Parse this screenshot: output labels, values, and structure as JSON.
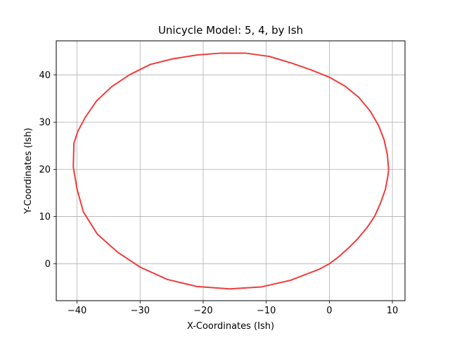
{
  "chart_data": {
    "type": "line",
    "title": "Unicycle Model: 5, 4, by Ish",
    "xlabel": "X-Coordinates (Ish)",
    "ylabel": "Y-Coordinates (Ish)",
    "xlim": [
      -43.3,
      12.0
    ],
    "ylim": [
      -7.8,
      47.2
    ],
    "xticks": [
      -40,
      -30,
      -20,
      -10,
      0,
      10
    ],
    "yticks": [
      0,
      10,
      20,
      30,
      40
    ],
    "grid": true,
    "series": [
      {
        "color": "#f03c3c",
        "x": [
          0,
          1.5,
          3.0,
          4.5,
          6.0,
          7.2,
          8.1,
          8.9,
          9.3,
          9.4,
          9.2,
          8.7,
          7.8,
          6.5,
          4.7,
          2.5,
          0.0,
          -2.8,
          -6.0,
          -9.5,
          -13.3,
          -17.2,
          -21.0,
          -24.8,
          -28.4,
          -31.7,
          -34.5,
          -36.9,
          -38.7,
          -39.9,
          -40.5,
          -40.6,
          -40.0,
          -39.0,
          -36.8,
          -33.6,
          -30.0,
          -25.7,
          -21.0,
          -15.8,
          -10.8,
          -6.2,
          -1.7,
          0
        ],
        "y": [
          0,
          1.5,
          3.3,
          5.3,
          7.7,
          10.1,
          12.8,
          15.8,
          18.7,
          20.0,
          23.1,
          26.2,
          29.3,
          32.3,
          35.2,
          37.6,
          39.5,
          41.0,
          42.5,
          43.9,
          44.6,
          44.6,
          44.2,
          43.4,
          42.2,
          40.0,
          37.5,
          34.5,
          31.0,
          28.0,
          25.5,
          20.5,
          15.8,
          11.0,
          6.3,
          2.5,
          -0.7,
          -3.3,
          -4.8,
          -5.3,
          -4.9,
          -3.5,
          -1.2,
          0
        ]
      }
    ]
  }
}
